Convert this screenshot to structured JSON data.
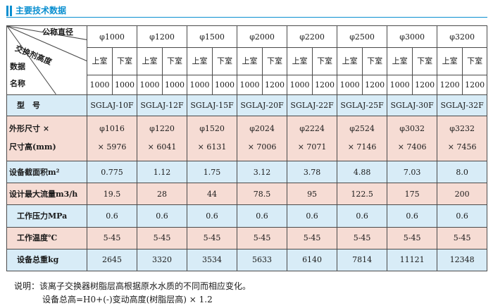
{
  "header": {
    "title": "主要技术数据"
  },
  "table": {
    "corner": {
      "label_diameter": "公称直径",
      "label_resin_height": "交换剂高度",
      "label_data": "数据",
      "label_name": "名称"
    },
    "diameters": [
      "φ1000",
      "φ1200",
      "φ1500",
      "φ2000",
      "φ2200",
      "φ2500",
      "φ3000",
      "φ3200"
    ],
    "chamber_upper": "上室",
    "chamber_lower": "下室",
    "resin_heights": [
      [
        "1000",
        "1000"
      ],
      [
        "1000",
        "1000"
      ],
      [
        "1000",
        "1000"
      ],
      [
        "1000",
        "1200"
      ],
      [
        "1000",
        "1200"
      ],
      [
        "1000",
        "1200"
      ],
      [
        "1000",
        "1200"
      ],
      [
        "1200",
        "1200"
      ]
    ],
    "rows": [
      {
        "label": "型　号",
        "values": [
          "SGLAJ-10F",
          "SGLAJ-12F",
          "SGLAJ-15F",
          "SGLAJ-20F",
          "SGLAJ-22F",
          "SGLAJ-25F",
          "SGLAJ-30F",
          "SGLAJ-32F"
        ]
      },
      {
        "label_line1": "外形尺寸 ×",
        "label_line2": "尺寸高(mm)",
        "values_line1": [
          "φ1016",
          "φ1220",
          "φ1520",
          "φ2024",
          "φ2224",
          "φ2524",
          "φ3032",
          "φ3232"
        ],
        "values_line2": [
          "× 5976",
          "× 6041",
          "× 6131",
          "× 7006",
          "× 7071",
          "× 7146",
          "× 7406",
          "× 7456"
        ]
      },
      {
        "label": "设备截面积m²",
        "values": [
          "0.775",
          "1.12",
          "1.75",
          "3.12",
          "3.78",
          "4.88",
          "7.03",
          "8.0"
        ]
      },
      {
        "label": "设计最大流量m3/h",
        "values": [
          "19.5",
          "28",
          "44",
          "78.5",
          "95",
          "122.5",
          "175",
          "200"
        ]
      },
      {
        "label": "工作压力MPa",
        "values": [
          "0.6",
          "0.6",
          "0.6",
          "0.6",
          "0.6",
          "0.6",
          "0.6",
          "0.6"
        ]
      },
      {
        "label": "工作温度℃",
        "values": [
          "5-45",
          "5-45",
          "5-45",
          "5-45",
          "5-45",
          "5-45",
          "5-45",
          "5-45"
        ]
      },
      {
        "label": "设备总重kg",
        "values": [
          "2645",
          "3320",
          "3534",
          "5633",
          "6140",
          "7814",
          "11121",
          "12348"
        ]
      }
    ]
  },
  "footnote": {
    "line1": "说明：该离子交换器树脂层高根据原水水质的不同而相应变化。",
    "line2": "设备总高=H0+(-)变动高度(树脂层高) × 1.2"
  },
  "colors": {
    "accent": "#0a8fd0",
    "pink_band": "#f6dcd4",
    "blue_band": "#d8ecf7"
  }
}
